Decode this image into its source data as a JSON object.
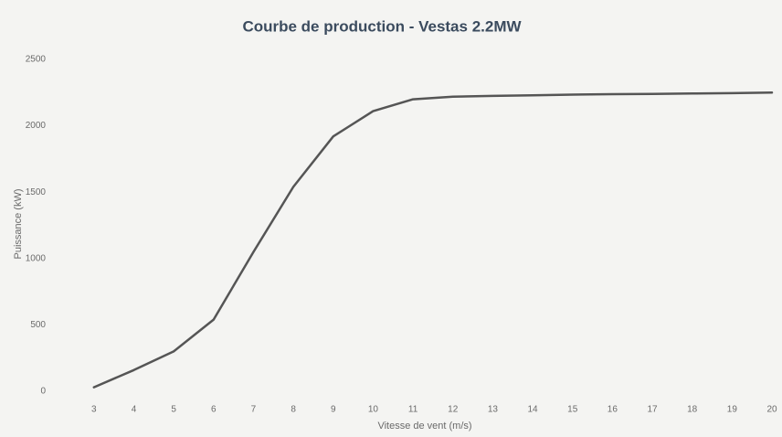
{
  "chart_data": {
    "type": "line",
    "title": "Courbe de production - Vestas 2.2MW",
    "x_label": "Vitesse de vent (m/s)",
    "y_label": "Puissance (kW)",
    "x": [
      3,
      4,
      5,
      6,
      7,
      8,
      9,
      10,
      11,
      12,
      13,
      14,
      15,
      16,
      17,
      18,
      19,
      20
    ],
    "values": [
      30,
      160,
      300,
      540,
      1050,
      1540,
      1920,
      2110,
      2200,
      2220,
      2225,
      2230,
      2235,
      2238,
      2240,
      2243,
      2246,
      2250
    ],
    "color": "#555555",
    "xlim": [
      2.5,
      20
    ],
    "xticks": [
      3,
      4,
      5,
      6,
      7,
      8,
      9,
      10,
      11,
      12,
      13,
      14,
      15,
      16,
      17,
      18,
      19,
      20
    ],
    "ylim": [
      0,
      2500
    ],
    "yticks": [
      0,
      500,
      1000,
      1500,
      2000,
      2500
    ],
    "grid": false
  }
}
